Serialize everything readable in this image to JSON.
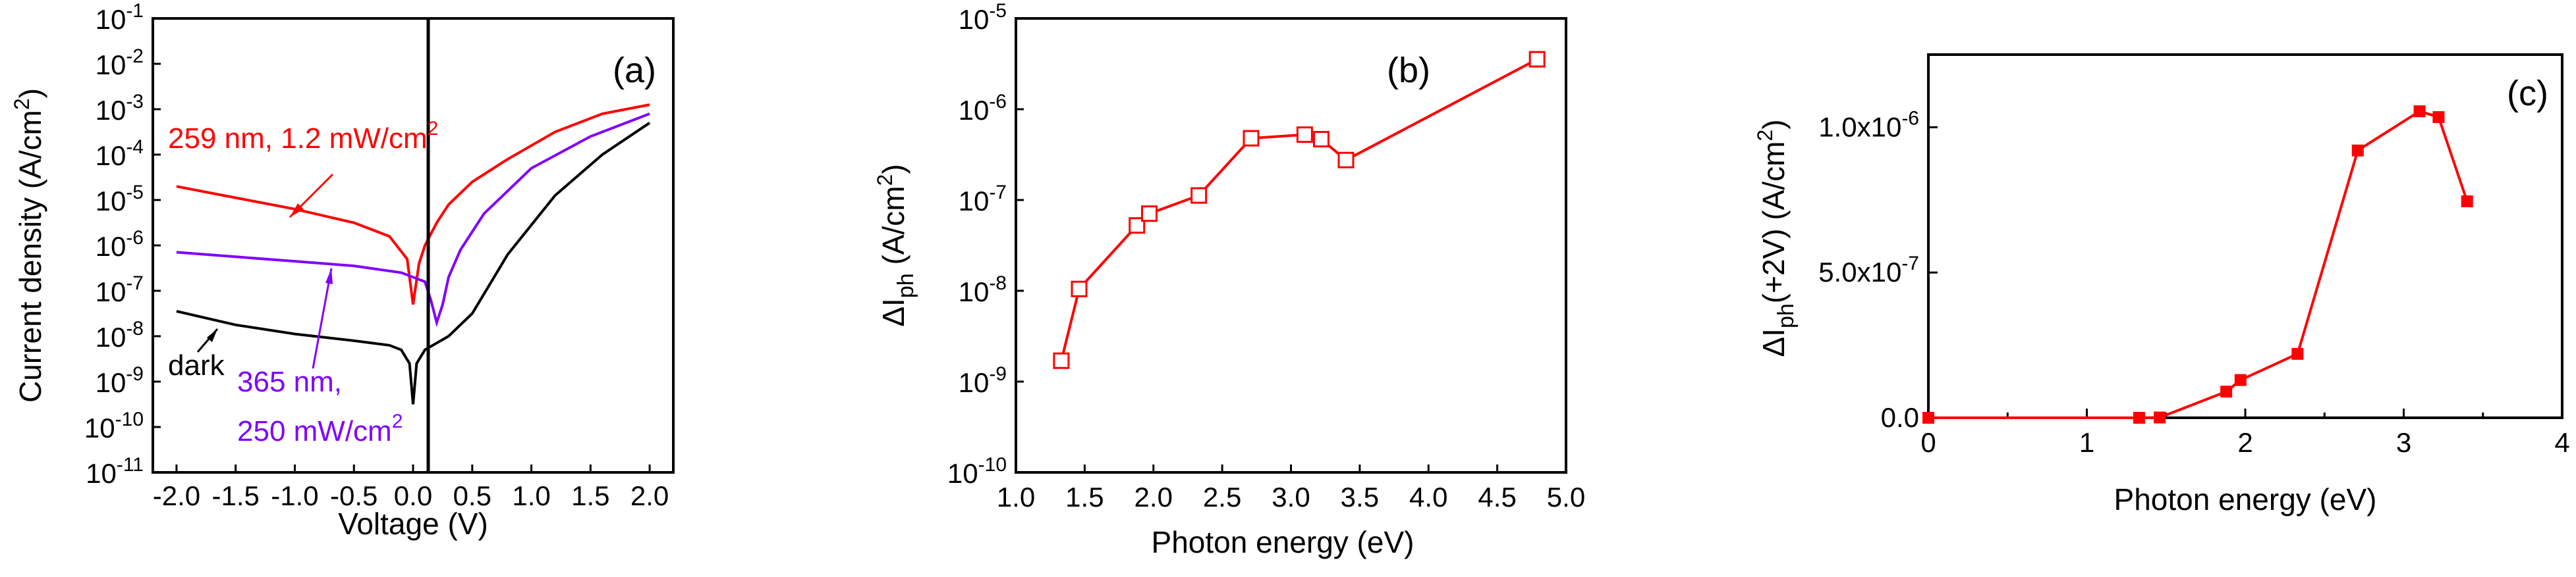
{
  "colors": {
    "red": "#ff0000",
    "purple": "#8000ff",
    "black": "#000000"
  },
  "chart_data": [
    {
      "panel": "(a)",
      "type": "line",
      "title": "",
      "xlabel": "Voltage (V)",
      "ylabel": "Current density (A/cm",
      "ylabel_sup": "2",
      "ylabel_end": ")",
      "xlim": [
        -2.2,
        2.2
      ],
      "ylim_log10": [
        -11,
        -1
      ],
      "yscale": "log",
      "x_ticks": [
        "-2.0",
        "-1.5",
        "-1.0",
        "-0.5",
        "0.0",
        "0.5",
        "1.0",
        "1.5",
        "2.0"
      ],
      "y_tick_exponents": [
        "-1",
        "-2",
        "-3",
        "-4",
        "-5",
        "-6",
        "-7",
        "-8",
        "-9",
        "-10",
        "-11"
      ],
      "y_tick_base": "10",
      "series": [
        {
          "name": "259 nm, 1.2 mW/cm2",
          "color": "#ff0000",
          "x": [
            -2.0,
            -1.5,
            -1.0,
            -0.5,
            -0.2,
            -0.05,
            0.0,
            0.05,
            0.1,
            0.2,
            0.3,
            0.5,
            0.8,
            1.2,
            1.6,
            2.0
          ],
          "y_log10": [
            -4.7,
            -4.95,
            -5.2,
            -5.5,
            -5.8,
            -6.3,
            -7.3,
            -6.4,
            -6.0,
            -5.5,
            -5.1,
            -4.6,
            -4.1,
            -3.5,
            -3.1,
            -2.9
          ]
        },
        {
          "name": "365 nm, 250 mW/cm2",
          "color": "#8000ff",
          "x": [
            -2.0,
            -1.5,
            -1.0,
            -0.5,
            -0.1,
            0.0,
            0.1,
            0.15,
            0.2,
            0.25,
            0.3,
            0.4,
            0.6,
            1.0,
            1.5,
            2.0
          ],
          "y_log10": [
            -6.15,
            -6.25,
            -6.35,
            -6.45,
            -6.6,
            -6.7,
            -6.8,
            -7.2,
            -7.7,
            -7.3,
            -6.7,
            -6.1,
            -5.3,
            -4.3,
            -3.6,
            -3.1
          ]
        },
        {
          "name": "dark",
          "color": "#000000",
          "x": [
            -2.0,
            -1.5,
            -1.0,
            -0.5,
            -0.2,
            -0.1,
            -0.03,
            0.0,
            0.03,
            0.1,
            0.3,
            0.5,
            0.8,
            1.2,
            1.6,
            2.0
          ],
          "y_log10": [
            -7.45,
            -7.75,
            -7.95,
            -8.1,
            -8.2,
            -8.3,
            -8.6,
            -9.5,
            -8.6,
            -8.3,
            -8.0,
            -7.5,
            -6.2,
            -4.9,
            -4.0,
            -3.3
          ]
        }
      ],
      "annotations": {
        "red_label_main": "259 nm, 1.2 mW/cm",
        "red_label_sup": "2",
        "purple_line1": "365 nm,",
        "purple_line2_main": "250 mW/cm",
        "purple_line2_sup": "2",
        "dark_label": "dark"
      }
    },
    {
      "panel": "(b)",
      "type": "scatter",
      "xlabel": "Photon energy (eV)",
      "ylabel_main": "ΔI",
      "ylabel_sub": "ph",
      "ylabel_rest": " (A/cm",
      "ylabel_sup": "2",
      "ylabel_end": ")",
      "xlim": [
        1.0,
        5.0
      ],
      "ylim_log10": [
        -10,
        -5
      ],
      "yscale": "log",
      "x_ticks": [
        "1.0",
        "1.5",
        "2.0",
        "2.5",
        "3.0",
        "3.5",
        "4.0",
        "4.5",
        "5.0"
      ],
      "y_tick_exponents": [
        "-5",
        "-6",
        "-7",
        "-8",
        "-9",
        "-10"
      ],
      "y_tick_base": "10",
      "series": [
        {
          "name": "ΔIph",
          "color": "#ff0000",
          "marker": "open-square",
          "x": [
            1.33,
            1.46,
            1.88,
            1.97,
            2.33,
            2.71,
            3.1,
            3.22,
            3.4,
            4.79
          ],
          "y_log10": [
            -8.77,
            -7.98,
            -7.28,
            -7.15,
            -6.95,
            -6.32,
            -6.28,
            -6.33,
            -6.56,
            -5.45
          ]
        }
      ]
    },
    {
      "panel": "(c)",
      "type": "line",
      "xlabel": "Photon energy (eV)",
      "ylabel_main": "ΔI",
      "ylabel_sub": "ph",
      "ylabel_rest": "(+2V) (A/cm",
      "ylabel_sup": "2",
      "ylabel_end": ")",
      "xlim": [
        0,
        4
      ],
      "ylim": [
        0,
        1.25e-06
      ],
      "x_ticks": [
        "0",
        "1",
        "2",
        "3",
        "4"
      ],
      "y_ticks": [
        {
          "value": 0,
          "label": "0.0"
        },
        {
          "value": 5e-07,
          "label": "5.0x10",
          "sup": "-7"
        },
        {
          "value": 1e-06,
          "label": "1.0x10",
          "sup": "-6"
        }
      ],
      "series": [
        {
          "name": "ΔIph(+2V)",
          "color": "#ff0000",
          "marker": "filled-square",
          "x": [
            0,
            1.33,
            1.46,
            1.88,
            1.97,
            2.33,
            2.71,
            3.1,
            3.22,
            3.4
          ],
          "y": [
            0,
            0,
            1e-09,
            9e-08,
            1.3e-07,
            2.2e-07,
            9.2e-07,
            1.055e-06,
            1.035e-06,
            7.45e-07
          ]
        }
      ]
    }
  ]
}
